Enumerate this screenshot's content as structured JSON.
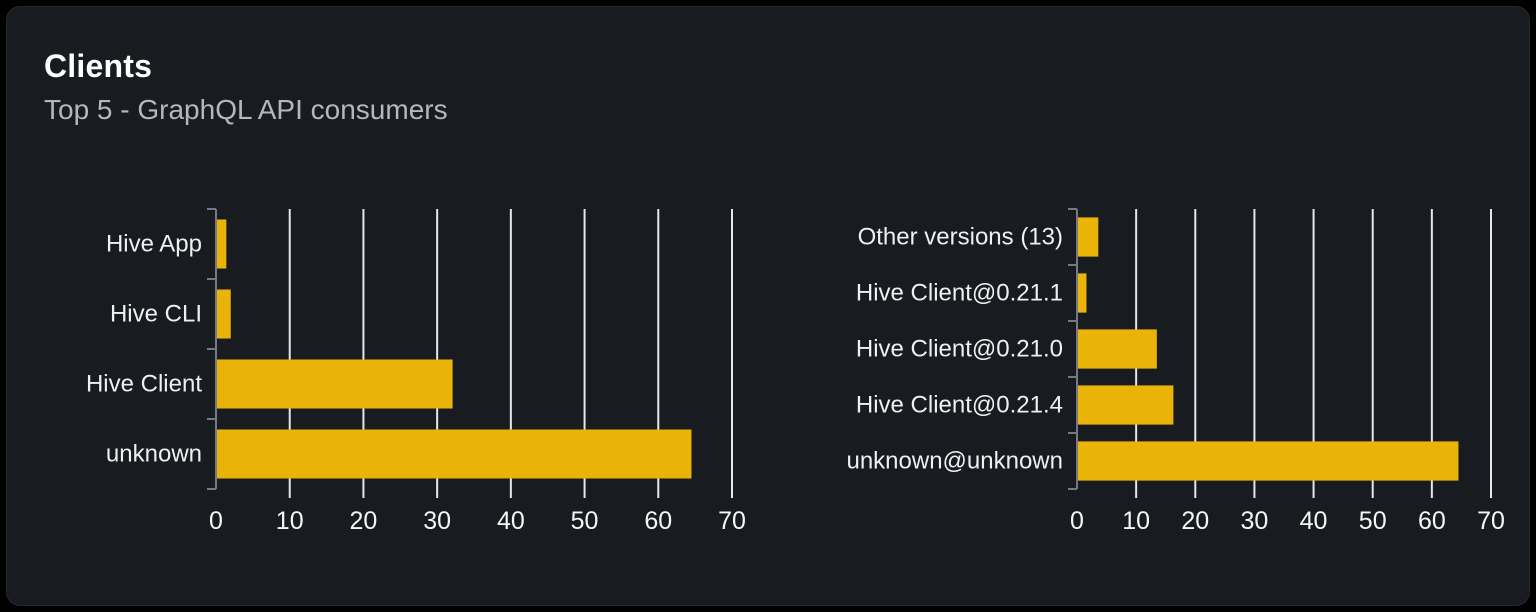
{
  "panel": {
    "title": "Clients",
    "subtitle": "Top 5 - GraphQL API consumers"
  },
  "colors": {
    "page_bg": "#000000",
    "panel_bg": "#181b1f",
    "panel_border": "#26292f",
    "bar": "#eab308",
    "grid": "#e4e7ec",
    "axis": "#757a82",
    "category_label": "#eef0f2",
    "tick_label": "#f5f6f7",
    "title": "#ffffff",
    "subtitle": "#b3b8be"
  },
  "chart_data": [
    {
      "type": "bar",
      "orientation": "horizontal",
      "categories": [
        "Hive App",
        "Hive CLI",
        "Hive Client",
        "unknown"
      ],
      "values": [
        1.4,
        2,
        32.1,
        64.5
      ],
      "xlabel": "",
      "ylabel": "",
      "xlim": [
        0,
        70
      ],
      "xticks": [
        0,
        10,
        20,
        30,
        40,
        50,
        60,
        70
      ],
      "grid": true,
      "legend": false
    },
    {
      "type": "bar",
      "orientation": "horizontal",
      "categories": [
        "Other versions (13)",
        "Hive Client@0.21.1",
        "Hive Client@0.21.0",
        "Hive Client@0.21.4",
        "unknown@unknown"
      ],
      "values": [
        3.6,
        1.6,
        13.5,
        16.3,
        64.5
      ],
      "xlabel": "",
      "ylabel": "",
      "xlim": [
        0,
        70
      ],
      "xticks": [
        0,
        10,
        20,
        30,
        40,
        50,
        60,
        70
      ],
      "grid": true,
      "legend": false
    }
  ]
}
